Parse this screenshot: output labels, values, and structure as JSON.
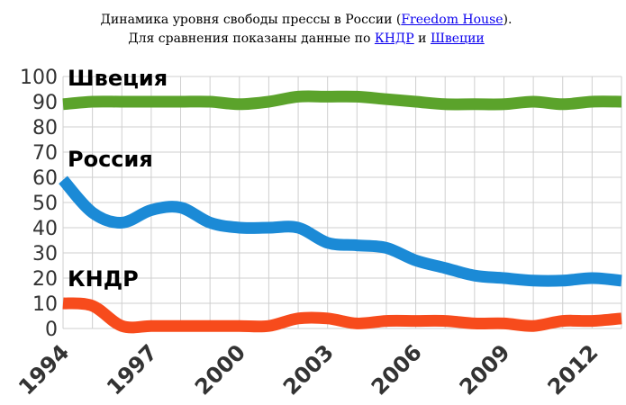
{
  "caption": {
    "text_before": "Динамика уровня свободы прессы в России (",
    "link_freedom_house": "Freedom House",
    "text_middle_1": "). Для сравнения показаны данные по ",
    "link_kndr": "КНДР",
    "text_middle_2": " и ",
    "link_sweden": "Швеции"
  },
  "chart_data": {
    "type": "line",
    "title": "",
    "xlabel": "",
    "ylabel": "",
    "xlim": [
      1994,
      2013
    ],
    "ylim": [
      0,
      100
    ],
    "yticks": [
      "0",
      "10",
      "20",
      "30",
      "40",
      "50",
      "60",
      "70",
      "80",
      "90",
      "100"
    ],
    "xticks": [
      "1994",
      "1997",
      "2000",
      "2003",
      "2006",
      "2009",
      "2012"
    ],
    "grid": true,
    "x": [
      1994,
      1995,
      1996,
      1997,
      1998,
      1999,
      2000,
      2001,
      2002,
      2003,
      2004,
      2005,
      2006,
      2007,
      2008,
      2009,
      2010,
      2011,
      2012,
      2013
    ],
    "series": [
      {
        "name": "Швеция",
        "color": "#5ba32b",
        "values": [
          89,
          90,
          90,
          90,
          90,
          90,
          89,
          90,
          92,
          92,
          92,
          91,
          90,
          89,
          89,
          89,
          90,
          89,
          90,
          90
        ]
      },
      {
        "name": "Россия",
        "color": "#1b8ad6",
        "values": [
          59,
          46,
          42,
          47,
          48,
          42,
          40,
          40,
          40,
          34,
          33,
          32,
          27,
          24,
          21,
          20,
          19,
          19,
          20,
          19
        ]
      },
      {
        "name": "КНДР",
        "color": "#f74b1c",
        "values": [
          10,
          9,
          1,
          1,
          1,
          1,
          1,
          1,
          4,
          4,
          2,
          3,
          3,
          3,
          2,
          2,
          1,
          3,
          3,
          4
        ]
      }
    ]
  }
}
